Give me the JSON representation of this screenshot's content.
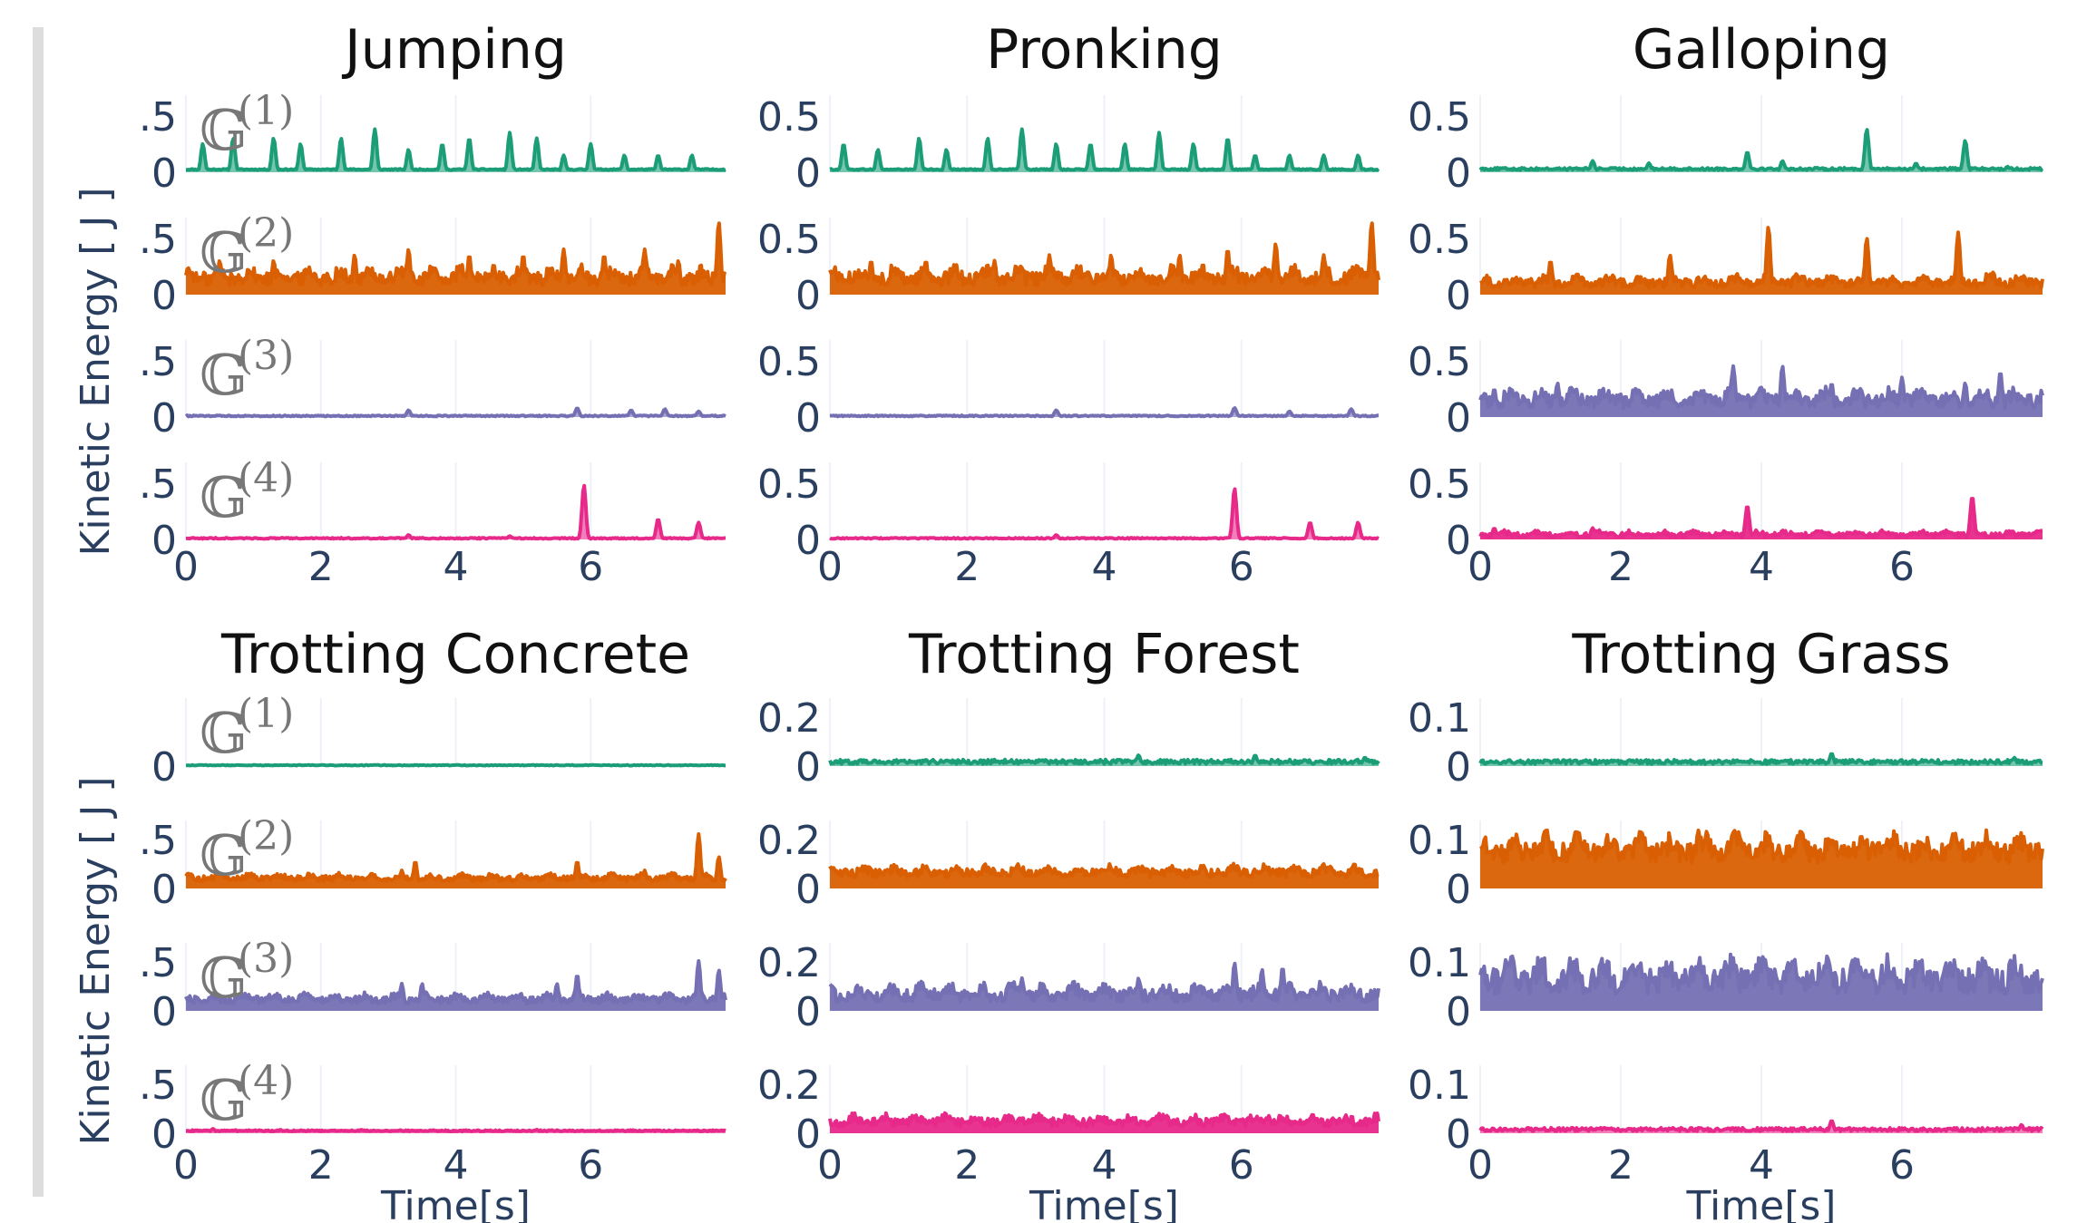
{
  "chart_data": {
    "type": "line",
    "xlim": [
      0,
      8
    ],
    "x_ticks": [
      0,
      2,
      4,
      6
    ],
    "xlabel": "Time[s]",
    "ylabel": "Kinetic Energy [ J ]",
    "groups": [
      "𝔾(1)",
      "𝔾(2)",
      "𝔾(3)",
      "𝔾(4)"
    ],
    "group_letter": "𝔾",
    "group_sups": [
      "(1)",
      "(2)",
      "(3)",
      "(4)"
    ],
    "colors": [
      "#1b9e77",
      "#d95f02",
      "#7570b3",
      "#e7298a"
    ],
    "panels": [
      {
        "title": "Jumping",
        "ymax": 0.6,
        "y_tick_label": ".5",
        "show_group_labels": true,
        "series": [
          {
            "group": "𝔾(1)",
            "base": 0.02,
            "noise": 0.01,
            "spikes": [
              [
                0.25,
                0.25
              ],
              [
                0.7,
                0.3
              ],
              [
                1.3,
                0.3
              ],
              [
                1.7,
                0.25
              ],
              [
                2.3,
                0.3
              ],
              [
                2.8,
                0.38
              ],
              [
                3.3,
                0.2
              ],
              [
                3.8,
                0.25
              ],
              [
                4.2,
                0.3
              ],
              [
                4.8,
                0.35
              ],
              [
                5.2,
                0.3
              ],
              [
                5.6,
                0.15
              ],
              [
                6.0,
                0.25
              ],
              [
                6.5,
                0.15
              ],
              [
                7.0,
                0.15
              ],
              [
                7.5,
                0.15
              ]
            ]
          },
          {
            "group": "𝔾(2)",
            "base": 0.08,
            "noise": 0.12,
            "spikes": [
              [
                0.5,
                0.3
              ],
              [
                1.3,
                0.3
              ],
              [
                2.5,
                0.35
              ],
              [
                3.3,
                0.4
              ],
              [
                4.2,
                0.35
              ],
              [
                5.0,
                0.35
              ],
              [
                5.6,
                0.4
              ],
              [
                6.2,
                0.35
              ],
              [
                6.8,
                0.4
              ],
              [
                7.3,
                0.3
              ],
              [
                7.9,
                0.65
              ]
            ]
          },
          {
            "group": "𝔾(3)",
            "base": 0.005,
            "noise": 0.01,
            "spikes": [
              [
                3.3,
                0.06
              ],
              [
                5.8,
                0.08
              ],
              [
                6.6,
                0.06
              ],
              [
                7.1,
                0.07
              ],
              [
                7.6,
                0.05
              ]
            ]
          },
          {
            "group": "𝔾(4)",
            "base": 0.005,
            "noise": 0.01,
            "spikes": [
              [
                5.9,
                0.48
              ],
              [
                7.0,
                0.18
              ],
              [
                7.6,
                0.15
              ],
              [
                3.3,
                0.04
              ],
              [
                4.8,
                0.03
              ]
            ]
          }
        ]
      },
      {
        "title": "Pronking",
        "ymax": 0.6,
        "y_tick_label": "0.5",
        "show_group_labels": false,
        "series": [
          {
            "group": "𝔾(1)",
            "base": 0.02,
            "noise": 0.01,
            "spikes": [
              [
                0.2,
                0.25
              ],
              [
                0.7,
                0.2
              ],
              [
                1.3,
                0.3
              ],
              [
                1.7,
                0.2
              ],
              [
                2.3,
                0.3
              ],
              [
                2.8,
                0.38
              ],
              [
                3.3,
                0.25
              ],
              [
                3.8,
                0.25
              ],
              [
                4.3,
                0.25
              ],
              [
                4.8,
                0.35
              ],
              [
                5.3,
                0.25
              ],
              [
                5.8,
                0.3
              ],
              [
                6.2,
                0.15
              ],
              [
                6.7,
                0.15
              ],
              [
                7.2,
                0.15
              ],
              [
                7.7,
                0.15
              ]
            ]
          },
          {
            "group": "𝔾(2)",
            "base": 0.08,
            "noise": 0.12,
            "spikes": [
              [
                0.6,
                0.3
              ],
              [
                1.4,
                0.3
              ],
              [
                2.4,
                0.3
              ],
              [
                3.2,
                0.35
              ],
              [
                4.1,
                0.35
              ],
              [
                5.1,
                0.35
              ],
              [
                5.8,
                0.4
              ],
              [
                6.5,
                0.45
              ],
              [
                7.2,
                0.35
              ],
              [
                7.9,
                0.65
              ]
            ]
          },
          {
            "group": "𝔾(3)",
            "base": 0.005,
            "noise": 0.01,
            "spikes": [
              [
                3.3,
                0.06
              ],
              [
                5.9,
                0.08
              ],
              [
                6.7,
                0.05
              ],
              [
                7.6,
                0.07
              ]
            ]
          },
          {
            "group": "𝔾(4)",
            "base": 0.005,
            "noise": 0.01,
            "spikes": [
              [
                5.9,
                0.45
              ],
              [
                7.0,
                0.15
              ],
              [
                7.7,
                0.15
              ],
              [
                3.3,
                0.04
              ]
            ]
          }
        ]
      },
      {
        "title": "Galloping",
        "ymax": 0.6,
        "y_tick_label": "0.5",
        "show_group_labels": false,
        "series": [
          {
            "group": "𝔾(1)",
            "base": 0.02,
            "noise": 0.02,
            "spikes": [
              [
                1.6,
                0.1
              ],
              [
                2.4,
                0.08
              ],
              [
                3.8,
                0.18
              ],
              [
                4.3,
                0.1
              ],
              [
                5.5,
                0.38
              ],
              [
                6.9,
                0.28
              ],
              [
                6.2,
                0.08
              ],
              [
                7.5,
                0.05
              ]
            ]
          },
          {
            "group": "𝔾(2)",
            "base": 0.06,
            "noise": 0.08,
            "spikes": [
              [
                1.0,
                0.3
              ],
              [
                2.7,
                0.35
              ],
              [
                4.1,
                0.6
              ],
              [
                5.5,
                0.5
              ],
              [
                6.8,
                0.55
              ],
              [
                7.3,
                0.2
              ]
            ]
          },
          {
            "group": "𝔾(3)",
            "base": 0.08,
            "noise": 0.12,
            "spikes": [
              [
                0.2,
                0.25
              ],
              [
                1.1,
                0.3
              ],
              [
                2.0,
                0.2
              ],
              [
                3.6,
                0.45
              ],
              [
                4.3,
                0.45
              ],
              [
                5.0,
                0.3
              ],
              [
                6.0,
                0.35
              ],
              [
                7.4,
                0.4
              ],
              [
                6.9,
                0.3
              ]
            ]
          },
          {
            "group": "𝔾(4)",
            "base": 0.02,
            "noise": 0.04,
            "spikes": [
              [
                0.2,
                0.1
              ],
              [
                1.6,
                0.1
              ],
              [
                3.8,
                0.3
              ],
              [
                4.3,
                0.08
              ],
              [
                7.0,
                0.38
              ],
              [
                6.3,
                0.08
              ],
              [
                7.9,
                0.06
              ]
            ]
          }
        ]
      },
      {
        "title": "Trotting Concrete",
        "ymax": 0.65,
        "y_tick_label": ".5",
        "show_group_labels": true,
        "show_y_ticks_first": false,
        "series": [
          {
            "group": "𝔾(1)",
            "base": 0.005,
            "noise": 0.008,
            "spikes": []
          },
          {
            "group": "𝔾(2)",
            "base": 0.08,
            "noise": 0.06,
            "spikes": [
              [
                3.4,
                0.3
              ],
              [
                3.2,
                0.2
              ],
              [
                5.8,
                0.3
              ],
              [
                7.6,
                0.6
              ],
              [
                7.9,
                0.35
              ],
              [
                6.8,
                0.2
              ]
            ]
          },
          {
            "group": "𝔾(3)",
            "base": 0.08,
            "noise": 0.08,
            "spikes": [
              [
                3.2,
                0.3
              ],
              [
                3.5,
                0.3
              ],
              [
                5.8,
                0.4
              ],
              [
                5.5,
                0.3
              ],
              [
                7.6,
                0.55
              ],
              [
                7.9,
                0.45
              ],
              [
                4.8,
                0.15
              ]
            ]
          },
          {
            "group": "𝔾(4)",
            "base": 0.02,
            "noise": 0.015,
            "spikes": [
              [
                0.4,
                0.05
              ],
              [
                1.4,
                0.04
              ],
              [
                2.6,
                0.04
              ],
              [
                5.2,
                0.04
              ]
            ]
          }
        ]
      },
      {
        "title": "Trotting Forest",
        "ymax": 0.27,
        "y_tick_label": "0.2",
        "show_group_labels": false,
        "series": [
          {
            "group": "𝔾(1)",
            "base": 0.01,
            "noise": 0.02,
            "spikes": [
              [
                4.5,
                0.05
              ],
              [
                6.2,
                0.05
              ],
              [
                7.8,
                0.04
              ]
            ]
          },
          {
            "group": "𝔾(2)",
            "base": 0.05,
            "noise": 0.04,
            "spikes": [
              [
                2.7,
                0.09
              ],
              [
                4.4,
                0.09
              ],
              [
                6.2,
                0.08
              ]
            ]
          },
          {
            "group": "𝔾(3)",
            "base": 0.04,
            "noise": 0.06,
            "spikes": [
              [
                1.4,
                0.1
              ],
              [
                2.8,
                0.15
              ],
              [
                4.5,
                0.15
              ],
              [
                5.9,
                0.22
              ],
              [
                6.3,
                0.19
              ],
              [
                6.6,
                0.2
              ],
              [
                5.4,
                0.12
              ]
            ]
          },
          {
            "group": "𝔾(4)",
            "base": 0.03,
            "noise": 0.04,
            "spikes": [
              [
                1.8,
                0.07
              ],
              [
                5.8,
                0.08
              ],
              [
                6.4,
                0.08
              ]
            ]
          }
        ]
      },
      {
        "title": "Trotting Grass",
        "ymax": 0.14,
        "y_tick_label": "0.1",
        "show_group_labels": false,
        "series": [
          {
            "group": "𝔾(1)",
            "base": 0.005,
            "noise": 0.01,
            "spikes": [
              [
                5.0,
                0.03
              ],
              [
                7.6,
                0.02
              ]
            ]
          },
          {
            "group": "𝔾(2)",
            "base": 0.06,
            "noise": 0.05,
            "spikes": [
              [
                3.1,
                0.14
              ],
              [
                1.8,
                0.11
              ],
              [
                5.6,
                0.1
              ]
            ]
          },
          {
            "group": "𝔾(3)",
            "base": 0.04,
            "noise": 0.06,
            "spikes": [
              [
                3.6,
                0.08
              ],
              [
                5.5,
                0.08
              ]
            ]
          },
          {
            "group": "𝔾(4)",
            "base": 0.005,
            "noise": 0.008,
            "spikes": [
              [
                5.0,
                0.03
              ],
              [
                7.7,
                0.02
              ]
            ]
          }
        ]
      }
    ]
  }
}
